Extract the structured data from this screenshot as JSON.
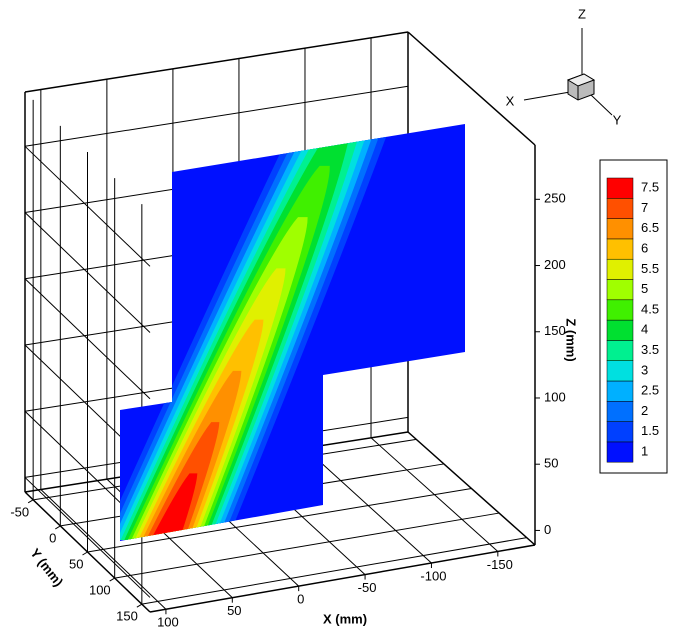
{
  "chart_data": {
    "type": "contour3d",
    "xlabel": "X (mm)",
    "ylabel": "Y (mm)",
    "zlabel": "Z (mm)",
    "xlim": [
      112,
      -178
    ],
    "xticks": [
      100,
      50,
      0,
      -50,
      -100,
      -150
    ],
    "ylim": [
      -65,
      165
    ],
    "yticks": [
      -50,
      0,
      50,
      100,
      150
    ],
    "zlim": [
      -11,
      291
    ],
    "zticks": [
      0,
      50,
      100,
      150,
      200,
      250
    ],
    "levels": [
      1,
      1.5,
      2,
      2.5,
      3,
      3.5,
      4,
      4.5,
      5,
      5.5,
      6,
      6.5,
      7,
      7.5
    ],
    "colors": [
      "#0010ff",
      "#0040ff",
      "#0070ff",
      "#00b0ff",
      "#00e0e0",
      "#00f090",
      "#00e030",
      "#40f000",
      "#a0ff00",
      "#e0f000",
      "#ffc000",
      "#ff9000",
      "#ff5000",
      "#ff0000"
    ],
    "grid": true
  },
  "triad": {
    "x": "X",
    "y": "Y",
    "z": "Z"
  }
}
